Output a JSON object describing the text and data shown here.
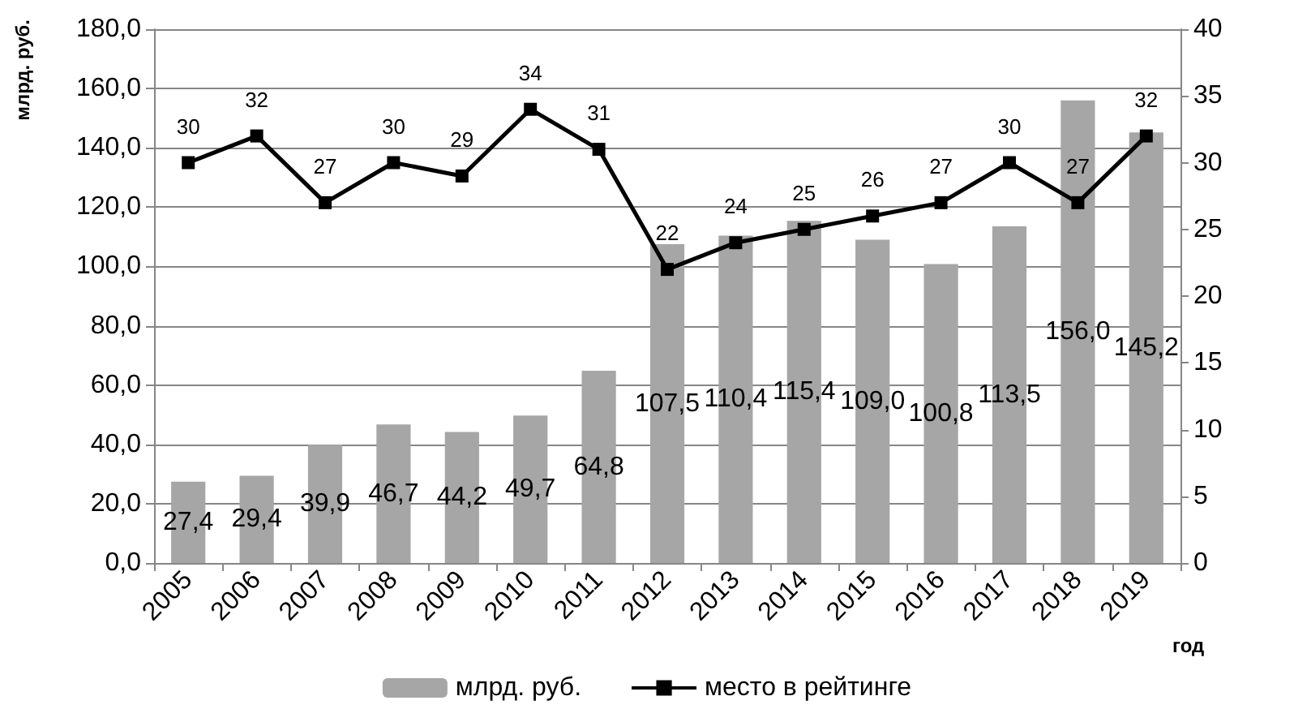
{
  "chart_data": {
    "type": "bar",
    "xlabel": "год",
    "ylabel": "млрд. руб.",
    "categories": [
      "2005",
      "2006",
      "2007",
      "2008",
      "2009",
      "2010",
      "2011",
      "2012",
      "2013",
      "2014",
      "2015",
      "2016",
      "2017",
      "2018",
      "2019"
    ],
    "series": [
      {
        "name": "млрд. руб.",
        "color": "#a6a6a6",
        "values": [
          27.4,
          29.4,
          39.9,
          46.7,
          44.2,
          49.7,
          64.8,
          107.5,
          110.4,
          115.4,
          109.0,
          100.8,
          113.5,
          156.0,
          145.2
        ],
        "value_labels": [
          "27,4",
          "29,4",
          "39,9",
          "46,7",
          "44,2",
          "49,7",
          "64,8",
          "107,5",
          "110,4",
          "115,4",
          "109,0",
          "100,8",
          "113,5",
          "156,0",
          "145,2"
        ]
      },
      {
        "name": "место в рейтинге",
        "type": "line",
        "axis": "y2",
        "color": "#000000",
        "marker": "square",
        "data_labels": true,
        "values": [
          30,
          32,
          27,
          30,
          29,
          34,
          31,
          22,
          24,
          25,
          26,
          27,
          30,
          27,
          32
        ]
      }
    ],
    "ylim": [
      0,
      180
    ],
    "yticks": [
      {
        "value": 0,
        "label": "0,0"
      },
      {
        "value": 20,
        "label": "20,0"
      },
      {
        "value": 40,
        "label": "40,0"
      },
      {
        "value": 60,
        "label": "60,0"
      },
      {
        "value": 80,
        "label": "80,0"
      },
      {
        "value": 100,
        "label": "100,0"
      },
      {
        "value": 120,
        "label": "120,0"
      },
      {
        "value": 140,
        "label": "140,0"
      },
      {
        "value": 160,
        "label": "160,0"
      },
      {
        "value": 180,
        "label": "180,0"
      }
    ],
    "y2lim": [
      0,
      40
    ],
    "y2ticks": [
      0,
      5,
      10,
      15,
      20,
      25,
      30,
      35,
      40
    ],
    "grid": "y",
    "legend": "bottom"
  }
}
